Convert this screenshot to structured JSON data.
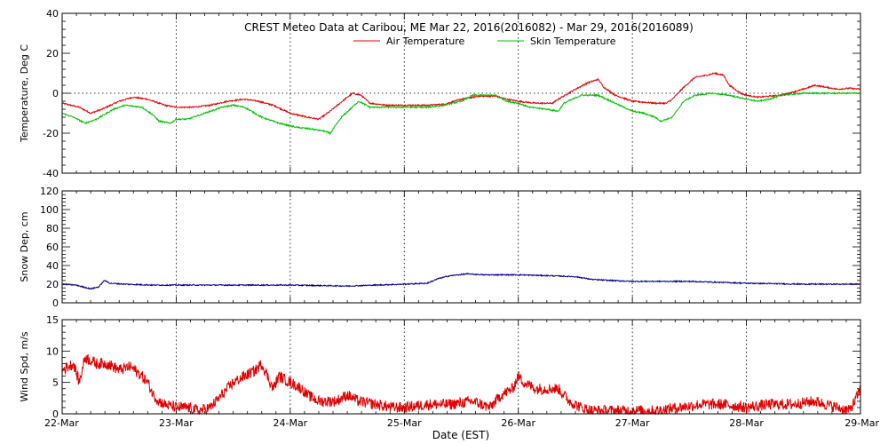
{
  "chart_data": {
    "type": "line",
    "title": "CREST Meteo Data at Caribou, ME   Mar 22, 2016(2016082) - Mar 29, 2016(2016089)",
    "xlabel": "Date (EST)",
    "x_tick_labels": [
      "22-Mar",
      "23-Mar",
      "24-Mar",
      "25-Mar",
      "26-Mar",
      "27-Mar",
      "28-Mar",
      "29-Mar"
    ],
    "xlim": [
      0,
      7
    ],
    "grid": true,
    "legend_placement": "top-center",
    "panels": [
      {
        "id": "temperature",
        "ylabel": "Temperature, Deg C",
        "ylim": [
          -40,
          40
        ],
        "yticks": [
          -40,
          -20,
          0,
          20,
          40
        ],
        "series": [
          {
            "name": "Air Temperature",
            "color": "#e00000",
            "points": [
              [
                0,
                -5
              ],
              [
                0.15,
                -7
              ],
              [
                0.25,
                -10
              ],
              [
                0.35,
                -8
              ],
              [
                0.5,
                -4
              ],
              [
                0.62,
                -2
              ],
              [
                0.75,
                -3
              ],
              [
                0.9,
                -6
              ],
              [
                1,
                -7
              ],
              [
                1.15,
                -7
              ],
              [
                1.3,
                -6
              ],
              [
                1.45,
                -4
              ],
              [
                1.6,
                -3
              ],
              [
                1.72,
                -4
              ],
              [
                1.85,
                -6
              ],
              [
                2,
                -10
              ],
              [
                2.15,
                -12
              ],
              [
                2.25,
                -13
              ],
              [
                2.35,
                -9
              ],
              [
                2.5,
                -2
              ],
              [
                2.55,
                0
              ],
              [
                2.62,
                -1
              ],
              [
                2.7,
                -5
              ],
              [
                2.85,
                -6
              ],
              [
                3,
                -6
              ],
              [
                3.2,
                -6
              ],
              [
                3.35,
                -5.5
              ],
              [
                3.5,
                -3
              ],
              [
                3.65,
                -1.5
              ],
              [
                3.8,
                -1.5
              ],
              [
                3.9,
                -3
              ],
              [
                4,
                -4
              ],
              [
                4.15,
                -5
              ],
              [
                4.3,
                -5
              ],
              [
                4.35,
                -3
              ],
              [
                4.5,
                2
              ],
              [
                4.6,
                5
              ],
              [
                4.7,
                7
              ],
              [
                4.75,
                3
              ],
              [
                4.85,
                -1
              ],
              [
                5,
                -4
              ],
              [
                5.1,
                -4.5
              ],
              [
                5.2,
                -5
              ],
              [
                5.3,
                -5
              ],
              [
                5.35,
                -3
              ],
              [
                5.45,
                3
              ],
              [
                5.55,
                8
              ],
              [
                5.65,
                9
              ],
              [
                5.72,
                10
              ],
              [
                5.8,
                9
              ],
              [
                5.85,
                4
              ],
              [
                5.95,
                0
              ],
              [
                6,
                -1
              ],
              [
                6.1,
                -2
              ],
              [
                6.3,
                -1
              ],
              [
                6.5,
                2
              ],
              [
                6.6,
                4
              ],
              [
                6.7,
                3
              ],
              [
                6.8,
                2
              ],
              [
                6.9,
                2.5
              ],
              [
                7,
                2
              ]
            ]
          },
          {
            "name": "Skin Temperature",
            "color": "#00c000",
            "points": [
              [
                0,
                -10
              ],
              [
                0.1,
                -12
              ],
              [
                0.2,
                -15
              ],
              [
                0.3,
                -13
              ],
              [
                0.45,
                -8
              ],
              [
                0.55,
                -6
              ],
              [
                0.7,
                -7
              ],
              [
                0.8,
                -11
              ],
              [
                0.85,
                -14
              ],
              [
                0.95,
                -15
              ],
              [
                1,
                -13
              ],
              [
                1.1,
                -13
              ],
              [
                1.25,
                -10
              ],
              [
                1.4,
                -7
              ],
              [
                1.5,
                -6
              ],
              [
                1.6,
                -7
              ],
              [
                1.75,
                -12
              ],
              [
                1.9,
                -15
              ],
              [
                2.05,
                -17
              ],
              [
                2.2,
                -18
              ],
              [
                2.3,
                -19
              ],
              [
                2.35,
                -20
              ],
              [
                2.45,
                -12
              ],
              [
                2.6,
                -4
              ],
              [
                2.7,
                -7
              ],
              [
                2.85,
                -7
              ],
              [
                3,
                -7
              ],
              [
                3.2,
                -7
              ],
              [
                3.35,
                -6
              ],
              [
                3.5,
                -4
              ],
              [
                3.6,
                -1
              ],
              [
                3.8,
                -1
              ],
              [
                3.9,
                -4
              ],
              [
                4,
                -5
              ],
              [
                4.1,
                -7
              ],
              [
                4.25,
                -8
              ],
              [
                4.35,
                -9
              ],
              [
                4.4,
                -5
              ],
              [
                4.55,
                -1
              ],
              [
                4.7,
                -1
              ],
              [
                4.85,
                -5
              ],
              [
                5,
                -9
              ],
              [
                5.1,
                -10
              ],
              [
                5.2,
                -12
              ],
              [
                5.25,
                -14
              ],
              [
                5.35,
                -12
              ],
              [
                5.45,
                -4
              ],
              [
                5.55,
                -1
              ],
              [
                5.7,
                0
              ],
              [
                5.85,
                -1
              ],
              [
                6,
                -3
              ],
              [
                6.1,
                -4
              ],
              [
                6.2,
                -3
              ],
              [
                6.3,
                -1
              ],
              [
                6.5,
                0
              ],
              [
                6.7,
                0
              ],
              [
                7,
                0
              ]
            ]
          }
        ]
      },
      {
        "id": "snow-depth",
        "ylabel": "Snow Dep, cm",
        "ylim": [
          0,
          120
        ],
        "yticks": [
          0,
          20,
          40,
          60,
          80,
          100,
          120
        ],
        "series": [
          {
            "color": "#00008b",
            "points": [
              [
                0,
                20
              ],
              [
                0.12,
                19
              ],
              [
                0.25,
                15
              ],
              [
                0.32,
                17
              ],
              [
                0.37,
                24
              ],
              [
                0.42,
                21
              ],
              [
                0.55,
                20
              ],
              [
                0.8,
                19
              ],
              [
                1,
                19
              ],
              [
                1.5,
                19
              ],
              [
                2,
                19
              ],
              [
                2.5,
                18
              ],
              [
                3,
                20
              ],
              [
                3.2,
                21
              ],
              [
                3.3,
                26
              ],
              [
                3.4,
                29
              ],
              [
                3.55,
                31
              ],
              [
                3.7,
                30
              ],
              [
                4,
                30
              ],
              [
                4.3,
                29
              ],
              [
                4.5,
                28
              ],
              [
                4.65,
                25
              ],
              [
                4.8,
                24
              ],
              [
                5,
                23
              ],
              [
                5.5,
                23
              ],
              [
                6,
                21
              ],
              [
                6.5,
                20
              ],
              [
                7,
                20
              ]
            ]
          }
        ]
      },
      {
        "id": "wind-speed",
        "ylabel": "Wind Spd, m/s",
        "ylim": [
          0,
          15
        ],
        "yticks": [
          0,
          5,
          10,
          15
        ],
        "series": [
          {
            "color": "#e00000",
            "points": [
              [
                0,
                7
              ],
              [
                0.1,
                8
              ],
              [
                0.15,
                5
              ],
              [
                0.2,
                9
              ],
              [
                0.3,
                8
              ],
              [
                0.4,
                8
              ],
              [
                0.5,
                7
              ],
              [
                0.6,
                7.5
              ],
              [
                0.7,
                6
              ],
              [
                0.75,
                5
              ],
              [
                0.8,
                3
              ],
              [
                0.85,
                2
              ],
              [
                0.9,
                1.5
              ],
              [
                1,
                1
              ],
              [
                1.1,
                1
              ],
              [
                1.2,
                0.5
              ],
              [
                1.3,
                1
              ],
              [
                1.4,
                3
              ],
              [
                1.5,
                5
              ],
              [
                1.6,
                6
              ],
              [
                1.7,
                7
              ],
              [
                1.75,
                8
              ],
              [
                1.8,
                6
              ],
              [
                1.85,
                4
              ],
              [
                1.9,
                6
              ],
              [
                2,
                5
              ],
              [
                2.1,
                4
              ],
              [
                2.15,
                3
              ],
              [
                2.25,
                2
              ],
              [
                2.4,
                2
              ],
              [
                2.5,
                3
              ],
              [
                2.6,
                2
              ],
              [
                2.75,
                1.5
              ],
              [
                2.9,
                1
              ],
              [
                3,
                1
              ],
              [
                3.2,
                1.5
              ],
              [
                3.4,
                1.5
              ],
              [
                3.6,
                2
              ],
              [
                3.75,
                1
              ],
              [
                3.85,
                3
              ],
              [
                3.95,
                4
              ],
              [
                4,
                6
              ],
              [
                4.05,
                5
              ],
              [
                4.15,
                4
              ],
              [
                4.25,
                4
              ],
              [
                4.35,
                4
              ],
              [
                4.45,
                2
              ],
              [
                4.55,
                1
              ],
              [
                4.65,
                0.5
              ],
              [
                4.8,
                0.5
              ],
              [
                5,
                0.5
              ],
              [
                5.2,
                0.5
              ],
              [
                5.4,
                1
              ],
              [
                5.6,
                1.5
              ],
              [
                5.8,
                1.5
              ],
              [
                6,
                1
              ],
              [
                6.2,
                1.5
              ],
              [
                6.4,
                1.5
              ],
              [
                6.6,
                2
              ],
              [
                6.8,
                1
              ],
              [
                6.9,
                0.5
              ],
              [
                6.95,
                2
              ],
              [
                7,
                4
              ]
            ]
          }
        ]
      }
    ]
  }
}
